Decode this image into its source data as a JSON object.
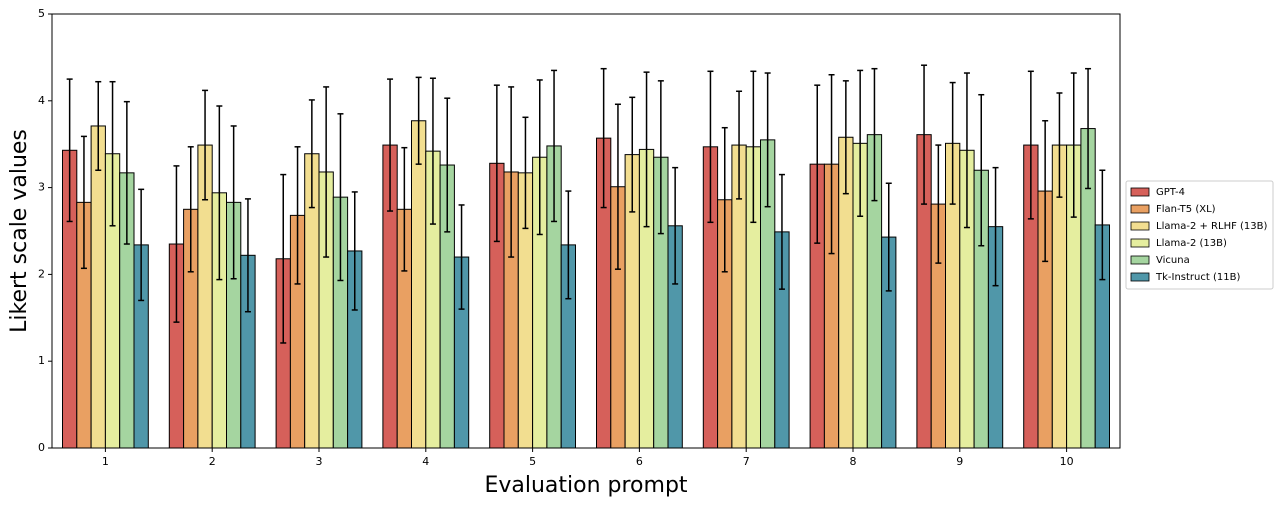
{
  "chart_data": {
    "type": "bar",
    "xlabel": "Evaluation prompt",
    "ylabel": "Likert scale values",
    "categories": [
      "1",
      "2",
      "3",
      "4",
      "5",
      "6",
      "7",
      "8",
      "9",
      "10"
    ],
    "ylim": [
      0,
      5
    ],
    "yticks": [
      0,
      1,
      2,
      3,
      4,
      5
    ],
    "legend": "right",
    "series": [
      {
        "name": "GPT-4",
        "color": "#d6605a",
        "values": [
          3.43,
          2.35,
          2.18,
          3.49,
          3.28,
          3.57,
          3.47,
          3.27,
          3.61,
          3.49
        ],
        "errors": [
          0.82,
          0.9,
          0.97,
          0.76,
          0.9,
          0.8,
          0.87,
          0.91,
          0.8,
          0.85
        ]
      },
      {
        "name": "Flan-T5 (XL)",
        "color": "#e9a062",
        "values": [
          2.83,
          2.75,
          2.68,
          2.75,
          3.18,
          3.01,
          2.86,
          3.27,
          2.81,
          2.96
        ],
        "errors": [
          0.76,
          0.72,
          0.79,
          0.71,
          0.98,
          0.95,
          0.83,
          1.03,
          0.68,
          0.81
        ]
      },
      {
        "name": "Llama-2 + RLHF (13B)",
        "color": "#f2de90",
        "values": [
          3.71,
          3.49,
          3.39,
          3.77,
          3.17,
          3.38,
          3.49,
          3.58,
          3.51,
          3.49
        ],
        "errors": [
          0.51,
          0.63,
          0.62,
          0.5,
          0.64,
          0.66,
          0.62,
          0.65,
          0.7,
          0.6
        ]
      },
      {
        "name": "Llama-2 (13B)",
        "color": "#e5ee9f",
        "values": [
          3.39,
          2.94,
          3.18,
          3.42,
          3.35,
          3.44,
          3.47,
          3.51,
          3.43,
          3.49
        ],
        "errors": [
          0.83,
          1.0,
          0.98,
          0.84,
          0.89,
          0.89,
          0.87,
          0.84,
          0.89,
          0.83
        ]
      },
      {
        "name": "Vicuna",
        "color": "#a5d5a0",
        "values": [
          3.17,
          2.83,
          2.89,
          3.26,
          3.48,
          3.35,
          3.55,
          3.61,
          3.2,
          3.68
        ],
        "errors": [
          0.82,
          0.88,
          0.96,
          0.77,
          0.87,
          0.88,
          0.77,
          0.76,
          0.87,
          0.69
        ]
      },
      {
        "name": "Tk-Instruct (11B)",
        "color": "#5097a9",
        "values": [
          2.34,
          2.22,
          2.27,
          2.2,
          2.34,
          2.56,
          2.49,
          2.43,
          2.55,
          2.57
        ],
        "errors": [
          0.64,
          0.65,
          0.68,
          0.6,
          0.62,
          0.67,
          0.66,
          0.62,
          0.68,
          0.63
        ]
      }
    ]
  }
}
